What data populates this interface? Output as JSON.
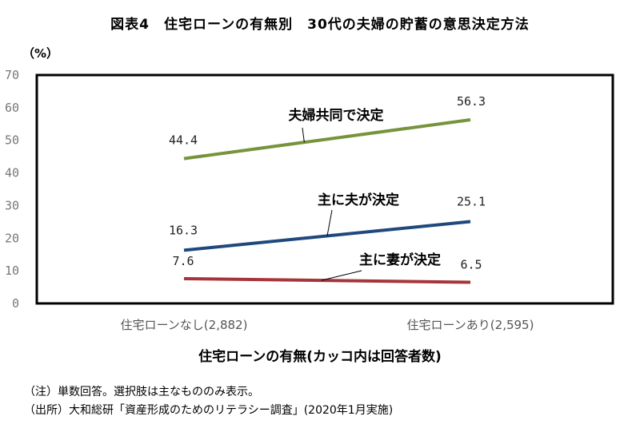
{
  "header": {
    "title": "図表4　住宅ローンの有無別　30代の夫婦の貯蓄の意思決定方法",
    "unit": "（%）"
  },
  "notes": {
    "note1": "（注）単数回答。選択肢は主なもののみ表示。",
    "note2": "（出所）大和総研「資産形成のためのリテラシー調査」(2020年1月実施)"
  },
  "colors": {
    "series_green": "#77933c",
    "series_blue": "#1f497d",
    "series_red": "#a6353b"
  },
  "chart_data": {
    "type": "line",
    "title": "図表4　住宅ローンの有無別　30代の夫婦の貯蓄の意思決定方法",
    "xlabel": "住宅ローンの有無(カッコ内は回答者数)",
    "ylabel": "（%）",
    "ylim": [
      0,
      70
    ],
    "yticks": [
      0,
      10,
      20,
      30,
      40,
      50,
      60,
      70
    ],
    "ytick_labels": [
      "0",
      "10",
      "20",
      "30",
      "40",
      "50",
      "60",
      "70"
    ],
    "categories": [
      "住宅ローンなし(2,882)",
      "住宅ローンあり(2,595)"
    ],
    "grid": false,
    "series": [
      {
        "name": "夫婦共同で決定",
        "values": [
          44.4,
          56.3
        ],
        "labels": [
          "44.4",
          "56.3"
        ],
        "color": "#77933c"
      },
      {
        "name": "主に夫が決定",
        "values": [
          16.3,
          25.1
        ],
        "labels": [
          "16.3",
          "25.1"
        ],
        "color": "#1f497d"
      },
      {
        "name": "主に妻が決定",
        "values": [
          7.6,
          6.5
        ],
        "labels": [
          "7.6",
          "6.5"
        ],
        "color": "#a6353b"
      }
    ]
  }
}
